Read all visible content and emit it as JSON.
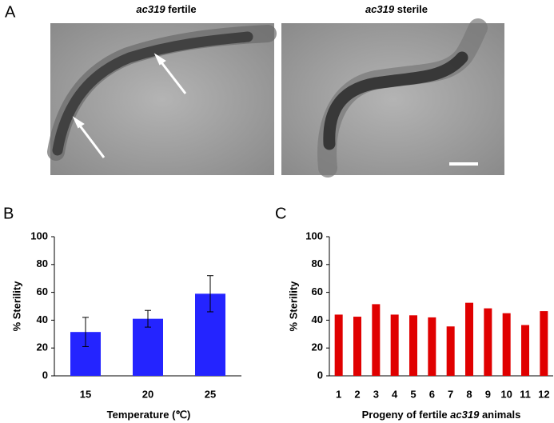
{
  "panels": {
    "a": {
      "label": "A",
      "images": [
        {
          "title": [
            "ac319",
            " fertile"
          ]
        },
        {
          "title": [
            "ac319",
            " sterile"
          ]
        }
      ]
    },
    "b": {
      "label": "B"
    },
    "c": {
      "label": "C"
    }
  },
  "chart_data": [
    {
      "type": "bar",
      "categories": [
        "15",
        "20",
        "25"
      ],
      "values": [
        31.5,
        41,
        59
      ],
      "errors": [
        10.5,
        6,
        13
      ],
      "color": "#2424ff",
      "ylabel": "% Sterility",
      "xlabel": [
        "Temperature (℃)"
      ],
      "ylim": [
        0,
        100
      ],
      "yticks": [
        0,
        20,
        40,
        60,
        80,
        100
      ]
    },
    {
      "type": "bar",
      "categories": [
        "1",
        "2",
        "3",
        "4",
        "5",
        "6",
        "7",
        "8",
        "9",
        "10",
        "11",
        "12"
      ],
      "values": [
        44,
        42.5,
        51.5,
        44,
        43.5,
        42,
        35.5,
        52.5,
        48.5,
        45,
        36.5,
        46.5
      ],
      "color": "#e00000",
      "ylabel": "% Sterility",
      "xlabel": [
        "Progeny of fertile ",
        "ac319",
        " animals"
      ],
      "ylim": [
        0,
        100
      ],
      "yticks": [
        0,
        20,
        40,
        60,
        80,
        100
      ]
    }
  ]
}
